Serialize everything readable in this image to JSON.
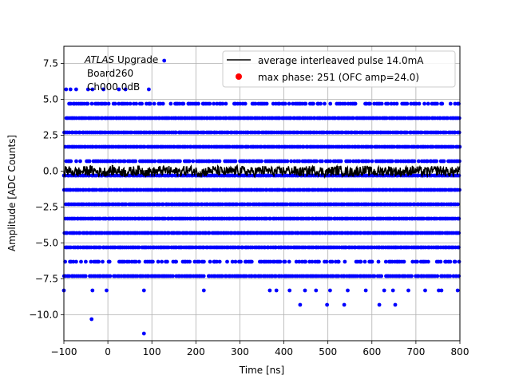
{
  "chart_data": {
    "type": "scatter",
    "xlabel": "Time [ns]",
    "ylabel": "Amplitude [ADC Counts]",
    "xlim": [
      -100,
      800
    ],
    "ylim": [
      -11.8,
      8.7
    ],
    "grid": true,
    "x_ticks": [
      -100,
      0,
      100,
      200,
      300,
      400,
      500,
      600,
      700,
      800
    ],
    "x_tick_labels": [
      "−100",
      "0",
      "100",
      "200",
      "300",
      "400",
      "500",
      "600",
      "700",
      "800"
    ],
    "y_ticks": [
      -10.0,
      -7.5,
      -5.0,
      -2.5,
      0.0,
      2.5,
      5.0,
      7.5
    ],
    "y_tick_labels": [
      "−10.0",
      "−7.5",
      "−5.0",
      "−2.5",
      "0.0",
      "2.5",
      "5.0",
      "7.5"
    ],
    "annotations": {
      "atlas_italic": "ATLAS",
      "atlas_rest": " Upgrade",
      "board": "Board260",
      "channel": "Ch000 0dB"
    },
    "legend": {
      "position": "top-right",
      "entries": [
        {
          "label": "average interleaved pulse 14.0mA",
          "color": "#000000",
          "marker": "line"
        },
        {
          "label": "max phase: 251 (OFC amp=24.0)",
          "color": "#ff0000",
          "marker": "dot"
        }
      ]
    },
    "series": [
      {
        "name": "samples",
        "color": "#0000ff",
        "marker": "dot",
        "levels": [
          {
            "y": 3.7,
            "density": 1.0
          },
          {
            "y": 2.7,
            "density": 1.0
          },
          {
            "y": 1.7,
            "density": 1.0
          },
          {
            "y": 0.7,
            "density": 0.85
          },
          {
            "y": -0.3,
            "density": 1.0
          },
          {
            "y": -1.3,
            "density": 1.0
          },
          {
            "y": -2.3,
            "density": 1.0
          },
          {
            "y": -3.3,
            "density": 1.0
          },
          {
            "y": -4.3,
            "density": 1.0
          },
          {
            "y": -5.3,
            "density": 1.0
          },
          {
            "y": 4.7,
            "density": 0.65
          },
          {
            "y": -6.3,
            "density": 0.6
          },
          {
            "y": -7.3,
            "density": 0.95
          }
        ],
        "sparse_points": [
          {
            "x": -95,
            "y": 5.7
          },
          {
            "x": -85,
            "y": 5.7
          },
          {
            "x": -72,
            "y": 5.7
          },
          {
            "x": -45,
            "y": 5.7
          },
          {
            "x": -35,
            "y": 5.7
          },
          {
            "x": -10,
            "y": 5.7
          },
          {
            "x": 25,
            "y": 5.7
          },
          {
            "x": 40,
            "y": 5.7
          },
          {
            "x": 93,
            "y": 5.7
          },
          {
            "x": 128,
            "y": 7.7
          },
          {
            "x": 95,
            "y": 4.7
          },
          {
            "x": -100,
            "y": -8.3
          },
          {
            "x": -35,
            "y": -8.3
          },
          {
            "x": -3,
            "y": -8.3
          },
          {
            "x": 82,
            "y": -8.3
          },
          {
            "x": 218,
            "y": -8.3
          },
          {
            "x": 368,
            "y": -8.3
          },
          {
            "x": 383,
            "y": -8.3
          },
          {
            "x": 413,
            "y": -8.3
          },
          {
            "x": 448,
            "y": -8.3
          },
          {
            "x": 473,
            "y": -8.3
          },
          {
            "x": 505,
            "y": -8.3
          },
          {
            "x": 545,
            "y": -8.3
          },
          {
            "x": 586,
            "y": -8.3
          },
          {
            "x": 628,
            "y": -8.3
          },
          {
            "x": 648,
            "y": -8.3
          },
          {
            "x": 683,
            "y": -8.3
          },
          {
            "x": 721,
            "y": -8.3
          },
          {
            "x": 752,
            "y": -8.3
          },
          {
            "x": 758,
            "y": -8.3
          },
          {
            "x": 795,
            "y": -8.3
          },
          {
            "x": 437,
            "y": -9.3
          },
          {
            "x": 498,
            "y": -9.3
          },
          {
            "x": 537,
            "y": -9.3
          },
          {
            "x": 617,
            "y": -9.3
          },
          {
            "x": 653,
            "y": -9.3
          },
          {
            "x": -37,
            "y": -10.3
          },
          {
            "x": 82,
            "y": -11.3
          }
        ]
      },
      {
        "name": "average interleaved pulse 14.0mA",
        "color": "#000000",
        "marker": "line",
        "baseline": 0.0,
        "noise_amplitude": 0.35
      }
    ]
  }
}
